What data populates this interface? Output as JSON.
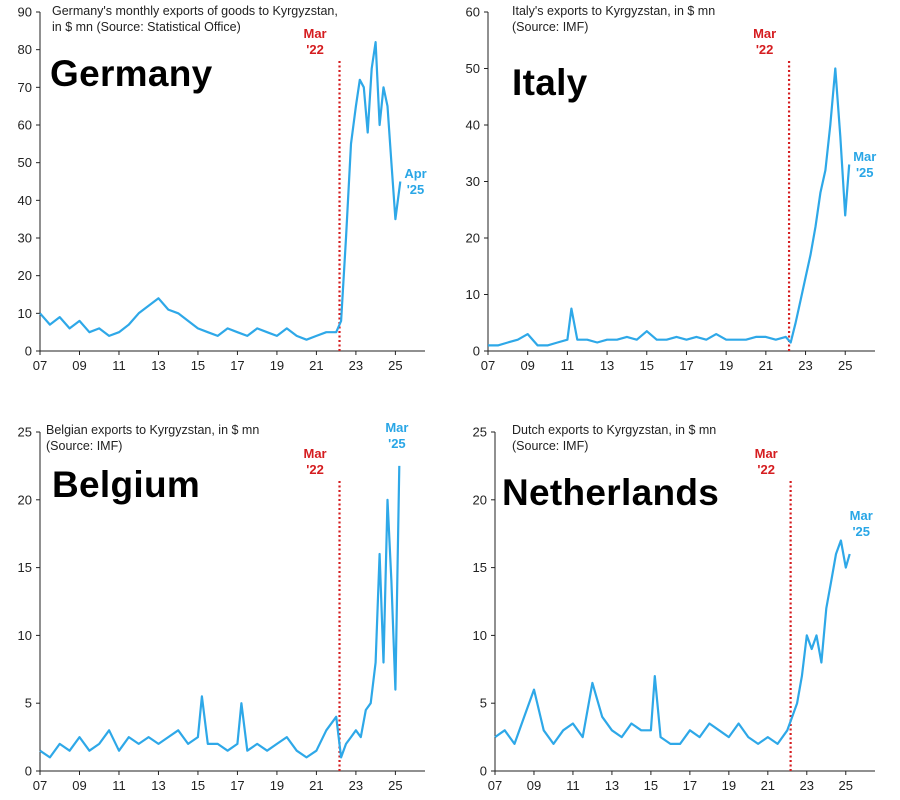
{
  "colors": {
    "line": "#2ea8e8",
    "marker": "#d51d20",
    "axis": "#222222"
  },
  "chart_data": [
    {
      "type": "line",
      "country": "Germany",
      "title": "Germany's monthly exports of goods to Kyrgyzstan,",
      "subtitle": "in $ mn (Source: Statistical Office)",
      "xlabel": "",
      "ylabel": "",
      "x_ticks": [
        "07",
        "09",
        "11",
        "13",
        "15",
        "17",
        "19",
        "21",
        "23",
        "25"
      ],
      "y_ticks": [
        0,
        10,
        20,
        30,
        40,
        50,
        60,
        70,
        80,
        90
      ],
      "xlim": [
        2007,
        2026.5
      ],
      "ylim": [
        0,
        90
      ],
      "event": {
        "x": 2022.17,
        "label_top": "Mar",
        "label_bottom": "'22"
      },
      "end_label": {
        "top": "Apr",
        "bottom": "'25"
      },
      "series": [
        {
          "x": [
            2007.0,
            2007.5,
            2008.0,
            2008.5,
            2009.0,
            2009.5,
            2010.0,
            2010.5,
            2011.0,
            2011.5,
            2012.0,
            2012.5,
            2013.0,
            2013.5,
            2014.0,
            2014.5,
            2015.0,
            2015.5,
            2016.0,
            2016.5,
            2017.0,
            2017.5,
            2018.0,
            2018.5,
            2019.0,
            2019.5,
            2020.0,
            2020.5,
            2021.0,
            2021.5,
            2022.0,
            2022.25,
            2022.5,
            2022.75,
            2023.0,
            2023.2,
            2023.4,
            2023.6,
            2023.8,
            2024.0,
            2024.2,
            2024.4,
            2024.6,
            2024.8,
            2025.0,
            2025.25
          ],
          "values": [
            10,
            7,
            9,
            6,
            8,
            5,
            6,
            4,
            5,
            7,
            10,
            12,
            14,
            11,
            10,
            8,
            6,
            5,
            4,
            6,
            5,
            4,
            6,
            5,
            4,
            6,
            4,
            3,
            4,
            5,
            5,
            8,
            30,
            55,
            65,
            72,
            70,
            58,
            75,
            82,
            60,
            70,
            65,
            50,
            35,
            45
          ]
        }
      ]
    },
    {
      "type": "line",
      "country": "Italy",
      "title": "Italy's exports to Kyrgyzstan, in $ mn",
      "subtitle": "(Source: IMF)",
      "xlabel": "",
      "ylabel": "",
      "x_ticks": [
        "07",
        "09",
        "11",
        "13",
        "15",
        "17",
        "19",
        "21",
        "23",
        "25"
      ],
      "y_ticks": [
        0,
        10,
        20,
        30,
        40,
        50,
        60
      ],
      "xlim": [
        2007,
        2026.5
      ],
      "ylim": [
        0,
        60
      ],
      "event": {
        "x": 2022.17,
        "label_top": "Mar",
        "label_bottom": "'22"
      },
      "end_label": {
        "top": "Mar",
        "bottom": "'25"
      },
      "series": [
        {
          "x": [
            2007.0,
            2007.5,
            2008.0,
            2008.5,
            2009.0,
            2009.5,
            2010.0,
            2010.5,
            2011.0,
            2011.2,
            2011.5,
            2012.0,
            2012.5,
            2013.0,
            2013.5,
            2014.0,
            2014.5,
            2015.0,
            2015.5,
            2016.0,
            2016.5,
            2017.0,
            2017.5,
            2018.0,
            2018.5,
            2019.0,
            2019.5,
            2020.0,
            2020.5,
            2021.0,
            2021.5,
            2022.0,
            2022.25,
            2022.5,
            2022.75,
            2023.0,
            2023.25,
            2023.5,
            2023.75,
            2024.0,
            2024.25,
            2024.5,
            2024.75,
            2025.0,
            2025.2
          ],
          "values": [
            1,
            1,
            1.5,
            2,
            3,
            1,
            1,
            1.5,
            2,
            7.5,
            2,
            2,
            1.5,
            2,
            2,
            2.5,
            2,
            3.5,
            2,
            2,
            2.5,
            2,
            2.5,
            2,
            3,
            2,
            2,
            2,
            2.5,
            2.5,
            2,
            2.5,
            1.5,
            5,
            9,
            13,
            17,
            22,
            28,
            32,
            40,
            50,
            38,
            24,
            33
          ]
        }
      ]
    },
    {
      "type": "line",
      "country": "Belgium",
      "title": "Belgian exports to Kyrgyzstan, in $ mn",
      "subtitle": "(Source: IMF)",
      "xlabel": "",
      "ylabel": "",
      "x_ticks": [
        "07",
        "09",
        "11",
        "13",
        "15",
        "17",
        "19",
        "21",
        "23",
        "25"
      ],
      "y_ticks": [
        0,
        5,
        10,
        15,
        20,
        25
      ],
      "xlim": [
        2007,
        2026.5
      ],
      "ylim": [
        0,
        25
      ],
      "event": {
        "x": 2022.17,
        "label_top": "Mar",
        "label_bottom": "'22"
      },
      "end_label": {
        "top": "Mar",
        "bottom": "'25"
      },
      "series": [
        {
          "x": [
            2007.0,
            2007.5,
            2008.0,
            2008.5,
            2009.0,
            2009.5,
            2010.0,
            2010.5,
            2011.0,
            2011.5,
            2012.0,
            2012.5,
            2013.0,
            2013.5,
            2014.0,
            2014.5,
            2015.0,
            2015.2,
            2015.5,
            2016.0,
            2016.5,
            2017.0,
            2017.2,
            2017.5,
            2018.0,
            2018.5,
            2019.0,
            2019.5,
            2020.0,
            2020.5,
            2021.0,
            2021.5,
            2022.0,
            2022.25,
            2022.5,
            2022.75,
            2023.0,
            2023.25,
            2023.5,
            2023.75,
            2024.0,
            2024.2,
            2024.4,
            2024.6,
            2024.8,
            2025.0,
            2025.2
          ],
          "values": [
            1.5,
            1,
            2,
            1.5,
            2.5,
            1.5,
            2,
            3,
            1.5,
            2.5,
            2,
            2.5,
            2,
            2.5,
            3,
            2,
            2.5,
            5.5,
            2,
            2,
            1.5,
            2,
            5,
            1.5,
            2,
            1.5,
            2,
            2.5,
            1.5,
            1,
            1.5,
            3,
            4,
            1,
            2,
            2.5,
            3,
            2.5,
            4.5,
            5,
            8,
            16,
            8,
            20,
            14,
            6,
            22.5
          ]
        }
      ]
    },
    {
      "type": "line",
      "country": "Netherlands",
      "title": "Dutch exports to Kyrgyzstan, in $ mn",
      "subtitle": "(Source: IMF)",
      "xlabel": "",
      "ylabel": "",
      "x_ticks": [
        "07",
        "09",
        "11",
        "13",
        "15",
        "17",
        "19",
        "21",
        "23",
        "25"
      ],
      "y_ticks": [
        0,
        5,
        10,
        15,
        20,
        25
      ],
      "xlim": [
        2007,
        2026.5
      ],
      "ylim": [
        0,
        25
      ],
      "event": {
        "x": 2022.17,
        "label_top": "Mar",
        "label_bottom": "'22"
      },
      "end_label": {
        "top": "Mar",
        "bottom": "'25"
      },
      "series": [
        {
          "x": [
            2007.0,
            2007.5,
            2008.0,
            2008.5,
            2009.0,
            2009.5,
            2010.0,
            2010.5,
            2011.0,
            2011.5,
            2012.0,
            2012.5,
            2013.0,
            2013.5,
            2014.0,
            2014.5,
            2015.0,
            2015.2,
            2015.5,
            2016.0,
            2016.5,
            2017.0,
            2017.5,
            2018.0,
            2018.5,
            2019.0,
            2019.5,
            2020.0,
            2020.5,
            2021.0,
            2021.5,
            2022.0,
            2022.25,
            2022.5,
            2022.75,
            2023.0,
            2023.25,
            2023.5,
            2023.75,
            2024.0,
            2024.25,
            2024.5,
            2024.75,
            2025.0,
            2025.2
          ],
          "values": [
            2.5,
            3,
            2,
            4,
            6,
            3,
            2,
            3,
            3.5,
            2.5,
            6.5,
            4,
            3,
            2.5,
            3.5,
            3,
            3,
            7,
            2.5,
            2,
            2,
            3,
            2.5,
            3.5,
            3,
            2.5,
            3.5,
            2.5,
            2,
            2.5,
            2,
            3,
            4,
            5,
            7,
            10,
            9,
            10,
            8,
            12,
            14,
            16,
            17,
            15,
            16
          ]
        }
      ]
    }
  ]
}
